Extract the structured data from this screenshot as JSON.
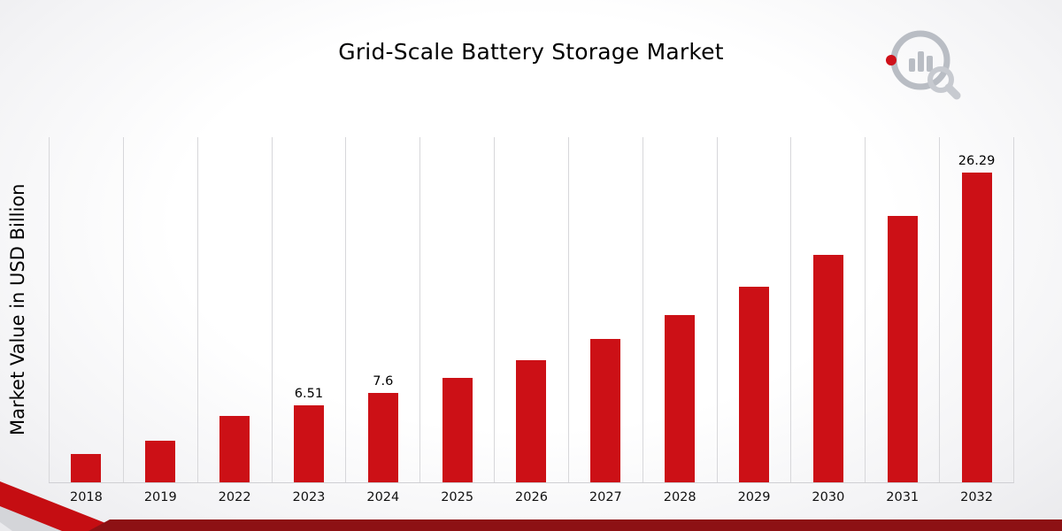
{
  "title": "Grid-Scale Battery Storage Market",
  "ylabel": "Market Value in USD Billion",
  "chart_data": {
    "type": "bar",
    "title": "Grid-Scale Battery Storage Market",
    "xlabel": "",
    "ylabel": "Market Value in USD Billion",
    "categories": [
      "2018",
      "2019",
      "2022",
      "2023",
      "2024",
      "2025",
      "2026",
      "2027",
      "2028",
      "2029",
      "2030",
      "2031",
      "2032"
    ],
    "values": [
      2.4,
      3.5,
      5.6,
      6.51,
      7.6,
      8.9,
      10.4,
      12.2,
      14.2,
      16.6,
      19.3,
      22.6,
      26.29
    ],
    "labeled_points": {
      "2023": "6.51",
      "2024": "7.6",
      "2032": "26.29"
    },
    "ylim": [
      0,
      29.3
    ],
    "grid": "vertical-gridlines",
    "legend": "none",
    "bar_color": "#cc1016"
  },
  "decor": {
    "gridline_color": "#d7d7da",
    "bottom_bar_color": "#8d1114",
    "corner_red_color": "#c50d12",
    "corner_gray_color": "#d4d5d9",
    "logo_gray": "#b9bdc4",
    "logo_red": "#cf1019"
  }
}
